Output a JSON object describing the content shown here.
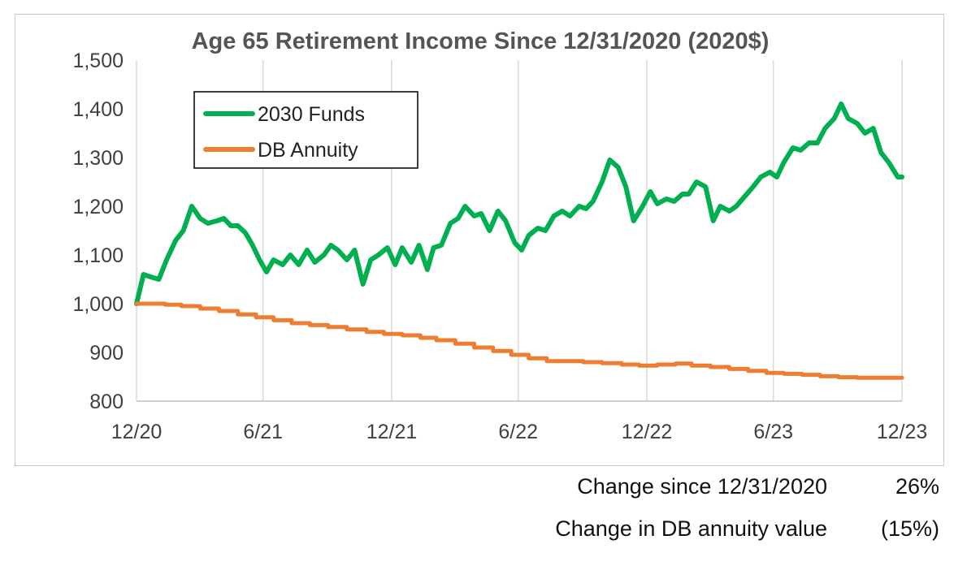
{
  "chart_data": {
    "type": "line",
    "title": "Age 65 Retirement Income Since 12/31/2020 (2020$)",
    "xlabel": "",
    "ylabel": "",
    "x_ticks": [
      "12/20",
      "6/21",
      "12/21",
      "6/22",
      "12/22",
      "6/23",
      "12/23"
    ],
    "x_tick_dates": [
      "2020-12-31",
      "2021-06-30",
      "2021-12-31",
      "2022-06-30",
      "2022-12-31",
      "2023-06-30",
      "2023-12-31"
    ],
    "xlim": [
      "2020-12-31",
      "2023-12-31"
    ],
    "y_ticks": [
      "800",
      "900",
      "1,000",
      "1,100",
      "1,200",
      "1,300",
      "1,400",
      "1,500"
    ],
    "ylim": [
      800,
      1500
    ],
    "grid": "vertical",
    "legend": "upper-left",
    "series": [
      {
        "name": "2030 Funds",
        "color": "#00b050",
        "x": [
          "2020-12-31",
          "2021-01-10",
          "2021-01-20",
          "2021-02-01",
          "2021-02-12",
          "2021-02-25",
          "2021-03-08",
          "2021-03-20",
          "2021-04-01",
          "2021-04-12",
          "2021-04-25",
          "2021-05-05",
          "2021-05-15",
          "2021-05-25",
          "2021-06-05",
          "2021-06-15",
          "2021-06-25",
          "2021-07-05",
          "2021-07-15",
          "2021-07-28",
          "2021-08-08",
          "2021-08-20",
          "2021-09-01",
          "2021-09-12",
          "2021-09-25",
          "2021-10-05",
          "2021-10-15",
          "2021-10-28",
          "2021-11-08",
          "2021-11-20",
          "2021-12-01",
          "2021-12-12",
          "2021-12-25",
          "2022-01-05",
          "2022-01-15",
          "2022-01-28",
          "2022-02-08",
          "2022-02-20",
          "2022-03-01",
          "2022-03-12",
          "2022-03-25",
          "2022-04-05",
          "2022-04-15",
          "2022-04-28",
          "2022-05-08",
          "2022-05-20",
          "2022-06-01",
          "2022-06-12",
          "2022-06-25",
          "2022-07-05",
          "2022-07-15",
          "2022-07-28",
          "2022-08-08",
          "2022-08-20",
          "2022-09-01",
          "2022-09-12",
          "2022-09-25",
          "2022-10-05",
          "2022-10-15",
          "2022-10-28",
          "2022-11-08",
          "2022-11-20",
          "2022-12-01",
          "2022-12-12",
          "2022-12-25",
          "2023-01-05",
          "2023-01-15",
          "2023-01-28",
          "2023-02-08",
          "2023-02-20",
          "2023-03-01",
          "2023-03-12",
          "2023-03-25",
          "2023-04-05",
          "2023-04-15",
          "2023-04-28",
          "2023-05-08",
          "2023-05-20",
          "2023-06-01",
          "2023-06-12",
          "2023-06-25",
          "2023-07-05",
          "2023-07-15",
          "2023-07-28",
          "2023-08-08",
          "2023-08-20",
          "2023-09-01",
          "2023-09-12",
          "2023-09-25",
          "2023-10-05",
          "2023-10-15",
          "2023-10-28",
          "2023-11-08",
          "2023-11-20",
          "2023-12-01",
          "2023-12-12",
          "2023-12-25",
          "2023-12-31"
        ],
        "values": [
          1000,
          1060,
          1055,
          1050,
          1090,
          1130,
          1150,
          1200,
          1175,
          1165,
          1170,
          1175,
          1160,
          1160,
          1145,
          1120,
          1090,
          1065,
          1090,
          1080,
          1100,
          1080,
          1110,
          1085,
          1100,
          1120,
          1110,
          1090,
          1110,
          1040,
          1090,
          1100,
          1115,
          1080,
          1115,
          1085,
          1120,
          1070,
          1115,
          1120,
          1165,
          1175,
          1200,
          1180,
          1185,
          1150,
          1190,
          1170,
          1125,
          1110,
          1140,
          1155,
          1150,
          1180,
          1190,
          1180,
          1200,
          1195,
          1210,
          1250,
          1295,
          1280,
          1240,
          1170,
          1200,
          1230,
          1205,
          1215,
          1210,
          1225,
          1225,
          1250,
          1240,
          1170,
          1200,
          1190,
          1200,
          1220,
          1240,
          1260,
          1270,
          1260,
          1290,
          1320,
          1315,
          1330,
          1330,
          1360,
          1380,
          1410,
          1380,
          1370,
          1350,
          1360,
          1310,
          1290,
          1260,
          1260
        ]
      },
      {
        "name": "DB Annuity",
        "color": "#ed7d31",
        "x": [
          "2020-12-31",
          "2021-01-15",
          "2021-02-10",
          "2021-03-05",
          "2021-04-01",
          "2021-04-28",
          "2021-05-25",
          "2021-06-20",
          "2021-07-15",
          "2021-08-10",
          "2021-09-05",
          "2021-10-01",
          "2021-10-28",
          "2021-11-25",
          "2021-12-20",
          "2022-01-15",
          "2022-02-10",
          "2022-03-05",
          "2022-04-01",
          "2022-04-28",
          "2022-05-25",
          "2022-06-20",
          "2022-07-15",
          "2022-08-10",
          "2022-09-05",
          "2022-10-01",
          "2022-10-28",
          "2022-11-25",
          "2022-12-20",
          "2023-01-15",
          "2023-02-10",
          "2023-03-05",
          "2023-04-01",
          "2023-04-28",
          "2023-05-25",
          "2023-06-20",
          "2023-07-15",
          "2023-08-10",
          "2023-09-05",
          "2023-10-01",
          "2023-10-28",
          "2023-11-25",
          "2023-12-31"
        ],
        "values": [
          1000,
          1000,
          998,
          995,
          990,
          985,
          978,
          972,
          966,
          960,
          956,
          952,
          947,
          942,
          938,
          935,
          930,
          925,
          918,
          910,
          903,
          895,
          888,
          882,
          882,
          880,
          878,
          875,
          873,
          875,
          877,
          873,
          870,
          866,
          862,
          858,
          856,
          854,
          851,
          849,
          848,
          848,
          848
        ]
      }
    ]
  },
  "footer": {
    "rows": [
      {
        "label": "Change since 12/31/2020",
        "value": "26%"
      },
      {
        "label": "Change in DB annuity value",
        "value": "(15%)"
      }
    ]
  }
}
